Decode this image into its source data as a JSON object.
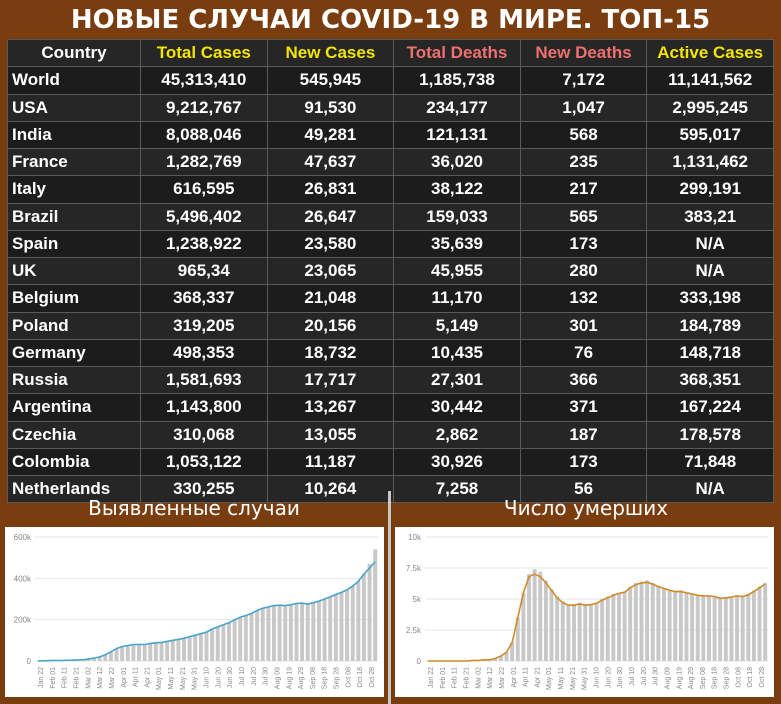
{
  "title": "НОВЫЕ СЛУЧАИ COVID-19 В МИРЕ. ТОП-15",
  "colors": {
    "background": "#7a3d0f",
    "header_yellow": "#f2e600",
    "header_red": "#f07070",
    "table_bg": "#1c1c1c",
    "bar_gray": "#c8c8c8",
    "line_blue": "#4aa3c8",
    "line_orange": "#d08a2a"
  },
  "table": {
    "headers": [
      "Country",
      "Total Cases",
      "New Cases",
      "Total Deaths",
      "New Deaths",
      "Active Cases"
    ],
    "header_colors": [
      "#ffffff",
      "#f2e600",
      "#f2e600",
      "#f07070",
      "#f07070",
      "#f2e600"
    ],
    "rows": [
      [
        "World",
        "45,313,410",
        "545,945",
        "1,185,738",
        "7,172",
        "11,141,562"
      ],
      [
        "USA",
        "9,212,767",
        "91,530",
        "234,177",
        "1,047",
        "2,995,245"
      ],
      [
        "India",
        "8,088,046",
        "49,281",
        "121,131",
        "568",
        "595,017"
      ],
      [
        "France",
        "1,282,769",
        "47,637",
        "36,020",
        "235",
        "1,131,462"
      ],
      [
        "Italy",
        "616,595",
        "26,831",
        "38,122",
        "217",
        "299,191"
      ],
      [
        "Brazil",
        "5,496,402",
        "26,647",
        "159,033",
        "565",
        "383,21"
      ],
      [
        "Spain",
        "1,238,922",
        "23,580",
        "35,639",
        "173",
        "N/A"
      ],
      [
        "UK",
        "965,34",
        "23,065",
        "45,955",
        "280",
        "N/A"
      ],
      [
        "Belgium",
        "368,337",
        "21,048",
        "11,170",
        "132",
        "333,198"
      ],
      [
        "Poland",
        "319,205",
        "20,156",
        "5,149",
        "301",
        "184,789"
      ],
      [
        "Germany",
        "498,353",
        "18,732",
        "10,435",
        "76",
        "148,718"
      ],
      [
        "Russia",
        "1,581,693",
        "17,717",
        "27,301",
        "366",
        "368,351"
      ],
      [
        "Argentina",
        "1,143,800",
        "13,267",
        "30,442",
        "371",
        "167,224"
      ],
      [
        "Czechia",
        "310,068",
        "13,055",
        "2,862",
        "187",
        "178,578"
      ],
      [
        "Colombia",
        "1,053,122",
        "11,187",
        "30,926",
        "173",
        "71,848"
      ],
      [
        "Netherlands",
        "330,255",
        "10,264",
        "7,258",
        "56",
        "N/A"
      ]
    ]
  },
  "chart_data": [
    {
      "type": "bar",
      "title": "Выявленные случаи",
      "x_ticks": [
        "Jan 22",
        "Feb 01",
        "Feb 11",
        "Feb 21",
        "Mar 02",
        "Mar 12",
        "Mar 22",
        "Apr 01",
        "Apr 11",
        "Apr 21",
        "May 01",
        "May 11",
        "May 21",
        "May 31",
        "Jun 10",
        "Jun 20",
        "Jun 30",
        "Jul 10",
        "Jul 20",
        "Jul 30",
        "Aug 09",
        "Aug 19",
        "Aug 29",
        "Sep 08",
        "Sep 18",
        "Sep 28",
        "Oct 08",
        "Oct 18",
        "Oct 28"
      ],
      "y_ticks": [
        "0",
        "200k",
        "400k",
        "600k"
      ],
      "ylim": [
        0,
        600000
      ],
      "series": [
        {
          "kind": "bar",
          "values": [
            500,
            1000,
            2000,
            3000,
            2500,
            3500,
            4000,
            5500,
            6000,
            9000,
            14000,
            20000,
            30000,
            45000,
            60000,
            70000,
            75000,
            80000,
            80000,
            80000,
            85000,
            88000,
            90000,
            95000,
            100000,
            105000,
            110000,
            118000,
            125000,
            132000,
            140000,
            155000,
            165000,
            175000,
            185000,
            200000,
            212000,
            220000,
            230000,
            245000,
            255000,
            262000,
            268000,
            270000,
            268000,
            272000,
            278000,
            280000,
            275000,
            282000,
            290000,
            300000,
            310000,
            322000,
            332000,
            345000,
            362000,
            385000,
            420000,
            470000,
            540000
          ]
        },
        {
          "kind": "line",
          "values": [
            500,
            1000,
            2000,
            3000,
            2500,
            3500,
            4000,
            5500,
            6000,
            9000,
            14000,
            20000,
            30000,
            45000,
            60000,
            70000,
            75000,
            80000,
            80000,
            80000,
            85000,
            88000,
            90000,
            95000,
            100000,
            105000,
            110000,
            118000,
            125000,
            132000,
            140000,
            155000,
            165000,
            175000,
            185000,
            200000,
            212000,
            220000,
            230000,
            245000,
            255000,
            262000,
            268000,
            270000,
            268000,
            272000,
            278000,
            280000,
            275000,
            282000,
            290000,
            300000,
            310000,
            322000,
            332000,
            345000,
            362000,
            385000,
            420000,
            450000,
            480000
          ]
        }
      ]
    },
    {
      "type": "bar",
      "title": "Число умерших",
      "x_ticks": [
        "Jan 22",
        "Feb 01",
        "Feb 11",
        "Feb 21",
        "Mar 02",
        "Mar 12",
        "Mar 22",
        "Apr 01",
        "Apr 11",
        "Apr 21",
        "May 01",
        "May 11",
        "May 21",
        "May 31",
        "Jun 10",
        "Jun 20",
        "Jun 30",
        "Jul 10",
        "Jul 20",
        "Jul 30",
        "Aug 09",
        "Aug 19",
        "Aug 29",
        "Sep 08",
        "Sep 18",
        "Sep 28",
        "Oct 08",
        "Oct 18",
        "Oct 28"
      ],
      "y_ticks": [
        "0",
        "2.5k",
        "5k",
        "7.5k",
        "10k"
      ],
      "ylim": [
        0,
        10000
      ],
      "series": [
        {
          "kind": "bar",
          "values": [
            0,
            0,
            0,
            0,
            0,
            0,
            0,
            0,
            50,
            50,
            100,
            100,
            200,
            400,
            700,
            1500,
            3500,
            5500,
            7000,
            7400,
            7200,
            6500,
            5800,
            5200,
            4800,
            4500,
            4600,
            4700,
            4500,
            4600,
            4700,
            5000,
            5200,
            5400,
            5500,
            5600,
            6000,
            6300,
            6400,
            6500,
            6300,
            6000,
            5900,
            5700,
            5600,
            5700,
            5500,
            5400,
            5300,
            5200,
            5300,
            5200,
            5000,
            5100,
            5200,
            5300,
            5200,
            5400,
            5700,
            6000,
            6300
          ]
        },
        {
          "kind": "line",
          "values": [
            0,
            0,
            0,
            0,
            0,
            0,
            0,
            0,
            50,
            50,
            100,
            100,
            200,
            400,
            700,
            1500,
            3500,
            5500,
            6800,
            7000,
            6800,
            6300,
            5700,
            5100,
            4700,
            4500,
            4500,
            4600,
            4500,
            4550,
            4650,
            4900,
            5100,
            5300,
            5450,
            5550,
            5900,
            6150,
            6300,
            6350,
            6200,
            6000,
            5850,
            5700,
            5600,
            5600,
            5500,
            5400,
            5300,
            5250,
            5250,
            5200,
            5050,
            5100,
            5150,
            5250,
            5200,
            5350,
            5600,
            5900,
            6200
          ]
        }
      ]
    }
  ]
}
